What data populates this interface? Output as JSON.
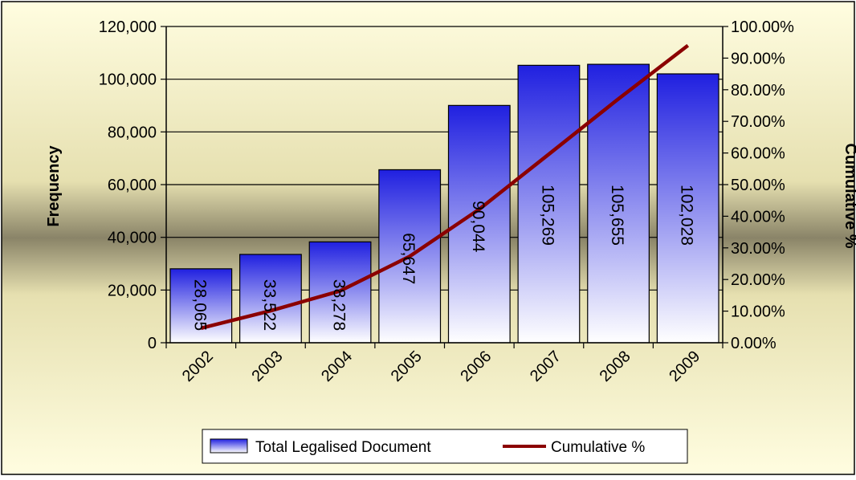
{
  "chart_data": {
    "type": "bar",
    "categories": [
      "2002",
      "2003",
      "2004",
      "2005",
      "2006",
      "2007",
      "2008",
      "2009"
    ],
    "series": [
      {
        "name": "Total Legalised Document",
        "type": "bar",
        "axis": "left",
        "values": [
          28065,
          33522,
          38278,
          65647,
          90044,
          105269,
          105655,
          102028
        ],
        "data_labels": [
          "28,065",
          "33,522",
          "38,278",
          "65,647",
          "90,044",
          "105,269",
          "105,655",
          "102,028"
        ],
        "color": "#2020e0"
      },
      {
        "name": "Cumulative %",
        "type": "line",
        "axis": "right",
        "values": [
          4.6,
          10.1,
          16.4,
          27.3,
          42.2,
          59.6,
          77.1,
          94.0
        ],
        "color": "#8b0000"
      }
    ],
    "ylabel": "Frequency",
    "ylim": [
      0,
      120000
    ],
    "y_ticks": [
      "0",
      "20,000",
      "40,000",
      "60,000",
      "80,000",
      "100,000",
      "120,000"
    ],
    "y2label": "Cumulative %",
    "y2lim": [
      0,
      100
    ],
    "y2_ticks": [
      "0.00%",
      "10.00%",
      "20.00%",
      "30.00%",
      "40.00%",
      "50.00%",
      "60.00%",
      "70.00%",
      "80.00%",
      "90.00%",
      "100.00%"
    ],
    "grid": true,
    "legend": {
      "placement": "bottom",
      "entries": [
        "Total Legalised Document",
        "Cumulative %"
      ]
    }
  },
  "colors": {
    "bg_top": "#fffde0",
    "bg_mid": "#8a8468",
    "bar_top": "#2020e0",
    "bar_bottom": "#ffffff",
    "line": "#8b0000"
  }
}
